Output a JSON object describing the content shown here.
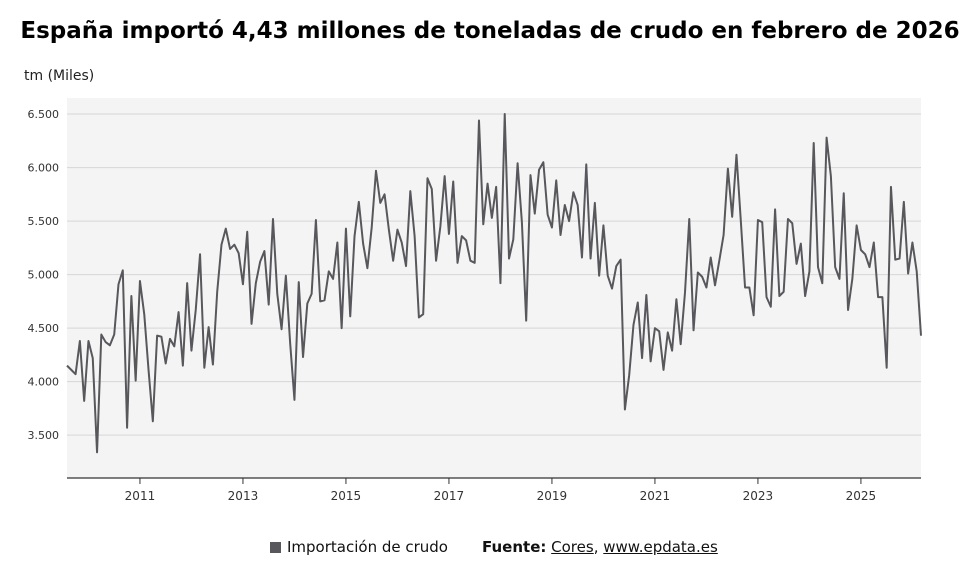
{
  "chart_data": {
    "type": "line",
    "title": "España importó 4,43 millones de toneladas de crudo en febrero de 2026",
    "ylabel": "tm (Miles)",
    "xlabel": "",
    "ylim": [
      3100,
      6650
    ],
    "y_ticks": [
      3500,
      4000,
      4500,
      5000,
      5500,
      6000,
      6500
    ],
    "y_tick_labels": [
      "3.500",
      "4.000",
      "4.500",
      "5.000",
      "5.500",
      "6.000",
      "6.500"
    ],
    "x_ticks": [
      2011,
      2013,
      2015,
      2017,
      2019,
      2021,
      2023,
      2025
    ],
    "x_tick_labels": [
      "2011",
      "2013",
      "2015",
      "2017",
      "2019",
      "2021",
      "2023",
      "2025"
    ],
    "start": "2009-08",
    "grid": true,
    "legend_position": "bottom",
    "series": [
      {
        "name": "Importación de crudo",
        "color": "#58575c",
        "values": [
          4150,
          4110,
          4070,
          4380,
          3820,
          4380,
          4220,
          3340,
          4440,
          4370,
          4340,
          4440,
          4910,
          5040,
          3570,
          4800,
          4010,
          4940,
          4630,
          4110,
          3630,
          4430,
          4420,
          4170,
          4400,
          4330,
          4650,
          4150,
          4920,
          4290,
          4670,
          5190,
          4130,
          4510,
          4160,
          4840,
          5280,
          5430,
          5240,
          5280,
          5200,
          4910,
          5400,
          4540,
          4920,
          5120,
          5220,
          4720,
          5520,
          4820,
          4490,
          4990,
          4360,
          3830,
          4930,
          4230,
          4730,
          4820,
          5510,
          4750,
          4760,
          5030,
          4960,
          5300,
          4500,
          5430,
          4610,
          5360,
          5680,
          5290,
          5060,
          5440,
          5970,
          5670,
          5750,
          5420,
          5130,
          5420,
          5300,
          5080,
          5780,
          5360,
          4600,
          4630,
          5900,
          5800,
          5130,
          5450,
          5920,
          5380,
          5870,
          5110,
          5360,
          5320,
          5130,
          5110,
          6440,
          5470,
          5850,
          5530,
          5820,
          4920,
          6500,
          5150,
          5330,
          6040,
          5490,
          4570,
          5930,
          5570,
          5980,
          6050,
          5560,
          5440,
          5880,
          5370,
          5650,
          5500,
          5770,
          5650,
          5160,
          6030,
          5150,
          5670,
          4990,
          5460,
          4990,
          4870,
          5080,
          5140,
          3740,
          4060,
          4530,
          4740,
          4220,
          4810,
          4190,
          4500,
          4470,
          4110,
          4460,
          4290,
          4770,
          4350,
          4830,
          5520,
          4480,
          5020,
          4980,
          4880,
          5160,
          4900,
          5130,
          5370,
          5990,
          5540,
          6120,
          5510,
          4880,
          4880,
          4620,
          5510,
          5490,
          4790,
          4700,
          5610,
          4800,
          4840,
          5520,
          5480,
          5100,
          5290,
          4800,
          5030,
          6230,
          5070,
          4920,
          6280,
          5920,
          5070,
          4960,
          5760,
          4670,
          4960,
          5460,
          5230,
          5190,
          5070,
          5300,
          4790,
          4790,
          4130,
          5820,
          5140,
          5150,
          5680,
          5010,
          5300,
          5030,
          4430
        ]
      }
    ],
    "legend_label": "Importación de crudo",
    "source_label": "Fuente:",
    "source_name": "Cores",
    "source_sep": ",",
    "source_url": "www.epdata.es"
  }
}
